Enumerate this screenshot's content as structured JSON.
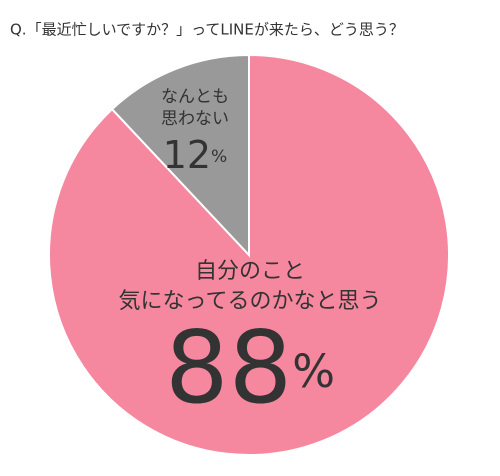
{
  "chart_data": {
    "type": "pie",
    "title": "Q.「最近忙しいですか？」ってLINEが来たら、どう思う？",
    "categories": [
      "自分のこと\n気になってるのかなと思う",
      "なんとも\n思わない"
    ],
    "values": [
      88,
      12
    ],
    "value_labels": [
      "88%",
      "12%"
    ],
    "colors": [
      "#f5879f",
      "#999999"
    ]
  }
}
